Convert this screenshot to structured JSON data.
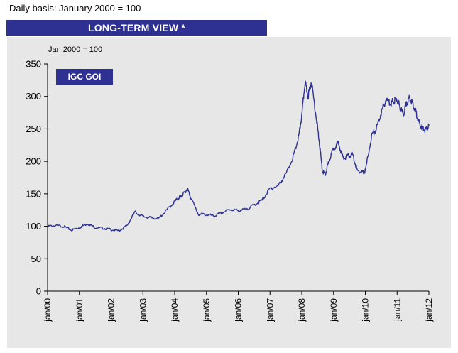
{
  "header": {
    "note": "Daily basis: January 2000 = 100",
    "banner": "LONG-TERM VIEW *"
  },
  "colors": {
    "accent": "#2e3192",
    "panel": "#e7e7e7",
    "line": "#2e3192"
  },
  "chart_data": {
    "type": "line",
    "subtitle": "Jan 2000 = 100",
    "legend": "IGC GOI",
    "legend_position": "top-left",
    "grid": false,
    "ylim": [
      0,
      350
    ],
    "yticks": [
      "0",
      "50",
      "100",
      "150",
      "200",
      "250",
      "300",
      "350"
    ],
    "xlim": [
      2000.0,
      2012.0
    ],
    "xtick_labels": [
      "jan/00",
      "jan/01",
      "jan/02",
      "jan/03",
      "jan/04",
      "jan/05",
      "jan/06",
      "jan/07",
      "jan/08",
      "jan/09",
      "jan/10",
      "jan/11",
      "jan/12"
    ],
    "series": [
      {
        "name": "IGC GOI",
        "x": [
          2000.0,
          2000.25,
          2000.5,
          2000.75,
          2001.0,
          2001.25,
          2001.5,
          2001.75,
          2002.0,
          2002.25,
          2002.5,
          2002.75,
          2003.0,
          2003.25,
          2003.5,
          2003.75,
          2004.0,
          2004.15,
          2004.25,
          2004.4,
          2004.5,
          2004.75,
          2005.0,
          2005.25,
          2005.5,
          2005.75,
          2006.0,
          2006.25,
          2006.5,
          2006.75,
          2007.0,
          2007.25,
          2007.5,
          2007.75,
          2007.9,
          2008.0,
          2008.1,
          2008.2,
          2008.3,
          2008.45,
          2008.55,
          2008.65,
          2008.75,
          2008.85,
          2009.0,
          2009.15,
          2009.3,
          2009.45,
          2009.6,
          2009.75,
          2009.9,
          2010.0,
          2010.2,
          2010.35,
          2010.5,
          2010.65,
          2010.8,
          2010.9,
          2011.0,
          2011.1,
          2011.2,
          2011.3,
          2011.4,
          2011.5,
          2011.6,
          2011.7,
          2011.8,
          2011.9,
          2012.0
        ],
        "values": [
          100,
          101,
          100,
          94,
          98,
          104,
          98,
          97,
          95,
          93,
          101,
          122,
          115,
          113,
          112,
          125,
          138,
          145,
          148,
          158,
          145,
          118,
          118,
          116,
          121,
          126,
          124,
          126,
          133,
          140,
          158,
          162,
          180,
          210,
          237,
          270,
          322,
          300,
          323,
          270,
          230,
          185,
          180,
          200,
          220,
          228,
          205,
          208,
          210,
          185,
          183,
          185,
          240,
          250,
          275,
          295,
          290,
          293,
          295,
          283,
          272,
          290,
          298,
          288,
          275,
          258,
          250,
          248,
          255
        ]
      }
    ]
  }
}
